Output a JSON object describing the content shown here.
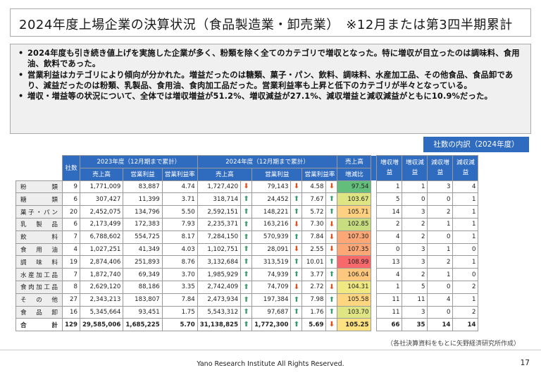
{
  "title": "2024年度上場企業の決算状況（食品製造業・卸売業）　※12月または第3四半期累計",
  "bullets": [
    "2024年度も引き続き値上げを実施した企業が多く、粉類を除く全てのカテゴリで増収となった。特に増収が目立ったのは調味料、食用油、飲料であった。",
    "営業利益はカテゴリにより傾向が分かれた。増益だったのは糖類、菓子・パン、飲料、調味料、水産加工品、その他食品、食品卸であり、減益だったのは粉類、乳製品、食用油、食肉加工品だった。営業利益率も上昇と低下のカテゴリが半々となっている。",
    "増収・増益等の状況について、全体では増収増益が51.2%、増収減益が27.1%、減収増益と減収減益がともに10.9%だった。"
  ],
  "side_title": "社数の内訳（2024年度）",
  "headers": {
    "count": "社数",
    "y2023": "2023年度（12月期まで累計）",
    "y2024": "2024年度（12月期まで累計）",
    "sales_ratio_1": "売上高",
    "sales_ratio_2": "増減比",
    "sales": "売上高",
    "op": "営業利益",
    "opm": "営業利益率",
    "b1": "増収増益",
    "b2": "増収減益",
    "b3": "減収増益",
    "b4": "減収減益"
  },
  "rows": [
    {
      "cat": "粉類",
      "n": "9",
      "s23": "1,771,009",
      "o23": "83,887",
      "m23": "4.74",
      "s24": "1,727,420",
      "sa": "down",
      "o24": "79,143",
      "oa": "down",
      "m24": "4.58",
      "ma": "down",
      "r": "97.54",
      "rc": "#63be7b",
      "b": [
        "1",
        "1",
        "3",
        "4"
      ]
    },
    {
      "cat": "糖類",
      "n": "6",
      "s23": "307,427",
      "o23": "11,399",
      "m23": "3.71",
      "s24": "318,714",
      "sa": "up",
      "o24": "24,452",
      "oa": "up",
      "m24": "7.67",
      "ma": "up",
      "r": "103.67",
      "rc": "#dfe582",
      "b": [
        "5",
        "0",
        "0",
        "1"
      ]
    },
    {
      "cat": "菓子・パン",
      "n": "20",
      "s23": "2,452,075",
      "o23": "134,796",
      "m23": "5.50",
      "s24": "2,592,151",
      "sa": "up",
      "o24": "148,221",
      "oa": "up",
      "m24": "5.72",
      "ma": "up",
      "r": "105.71",
      "rc": "#fdd17f",
      "b": [
        "14",
        "3",
        "2",
        "1"
      ]
    },
    {
      "cat": "乳製品",
      "n": "6",
      "s23": "2,173,499",
      "o23": "172,383",
      "m23": "7.93",
      "s24": "2,235,371",
      "sa": "up",
      "o24": "163,216",
      "oa": "down",
      "m24": "7.30",
      "ma": "down",
      "r": "102.85",
      "rc": "#c7dd80",
      "b": [
        "2",
        "2",
        "1",
        "1"
      ]
    },
    {
      "cat": "飲料",
      "n": "7",
      "s23": "6,788,602",
      "o23": "554,725",
      "m23": "8.17",
      "s24": "7,284,150",
      "sa": "up",
      "o24": "570,939",
      "oa": "up",
      "m24": "7.84",
      "ma": "down",
      "r": "107.30",
      "rc": "#fba876",
      "b": [
        "4",
        "2",
        "0",
        "1"
      ]
    },
    {
      "cat": "食用油",
      "n": "4",
      "s23": "1,027,251",
      "o23": "41,349",
      "m23": "4.03",
      "s24": "1,102,751",
      "sa": "up",
      "o24": "28,091",
      "oa": "down",
      "m24": "2.55",
      "ma": "down",
      "r": "107.35",
      "rc": "#fba776",
      "b": [
        "0",
        "3",
        "1",
        "0"
      ]
    },
    {
      "cat": "調味料",
      "n": "19",
      "s23": "2,874,406",
      "o23": "251,893",
      "m23": "8.76",
      "s24": "3,132,684",
      "sa": "up",
      "o24": "313,519",
      "oa": "up",
      "m24": "10.01",
      "ma": "up",
      "r": "108.99",
      "rc": "#f8696b",
      "b": [
        "13",
        "3",
        "2",
        "1"
      ]
    },
    {
      "cat": "水産加工品",
      "n": "7",
      "s23": "1,872,740",
      "o23": "69,349",
      "m23": "3.70",
      "s24": "1,985,929",
      "sa": "up",
      "o24": "74,939",
      "oa": "up",
      "m24": "3.77",
      "ma": "up",
      "r": "106.04",
      "rc": "#fdc87d",
      "b": [
        "4",
        "2",
        "1",
        "0"
      ]
    },
    {
      "cat": "食肉加工品",
      "n": "8",
      "s23": "2,629,120",
      "o23": "88,186",
      "m23": "3.35",
      "s24": "2,742,409",
      "sa": "up",
      "o24": "74,709",
      "oa": "down",
      "m24": "2.72",
      "ma": "down",
      "r": "104.31",
      "rc": "#f0e983",
      "b": [
        "1",
        "5",
        "0",
        "2"
      ]
    },
    {
      "cat": "その他",
      "n": "27",
      "s23": "2,343,213",
      "o23": "183,807",
      "m23": "7.84",
      "s24": "2,473,934",
      "sa": "up",
      "o24": "197,384",
      "oa": "up",
      "m24": "7.98",
      "ma": "up",
      "r": "105.58",
      "rc": "#fed680",
      "b": [
        "11",
        "11",
        "4",
        "1"
      ]
    },
    {
      "cat": "食品卸",
      "n": "16",
      "s23": "5,345,664",
      "o23": "93,451",
      "m23": "1.75",
      "s24": "5,543,312",
      "sa": "up",
      "o24": "97,687",
      "oa": "up",
      "m24": "1.76",
      "ma": "up",
      "r": "103.70",
      "rc": "#dfe582",
      "b": [
        "11",
        "3",
        "0",
        "2"
      ]
    }
  ],
  "total": {
    "cat": "合計",
    "n": "129",
    "s23": "29,585,006",
    "o23": "1,685,225",
    "m23": "5.70",
    "s24": "31,138,825",
    "sa": "up",
    "o24": "1,772,300",
    "oa": "up",
    "m24": "5.69",
    "ma": "down",
    "r": "105.25",
    "rc": "#fee282",
    "b": [
      "66",
      "35",
      "14",
      "14"
    ]
  },
  "source": "（各社決算資料をもとに矢野経済研究所作成）",
  "copyright": "Yano Research Institute All Rights Reserved.",
  "page_number": "17",
  "colors": {
    "header_blue": "#2f6bbf",
    "up_arrow": "#3a9b6f",
    "down_arrow": "#e0501e"
  }
}
